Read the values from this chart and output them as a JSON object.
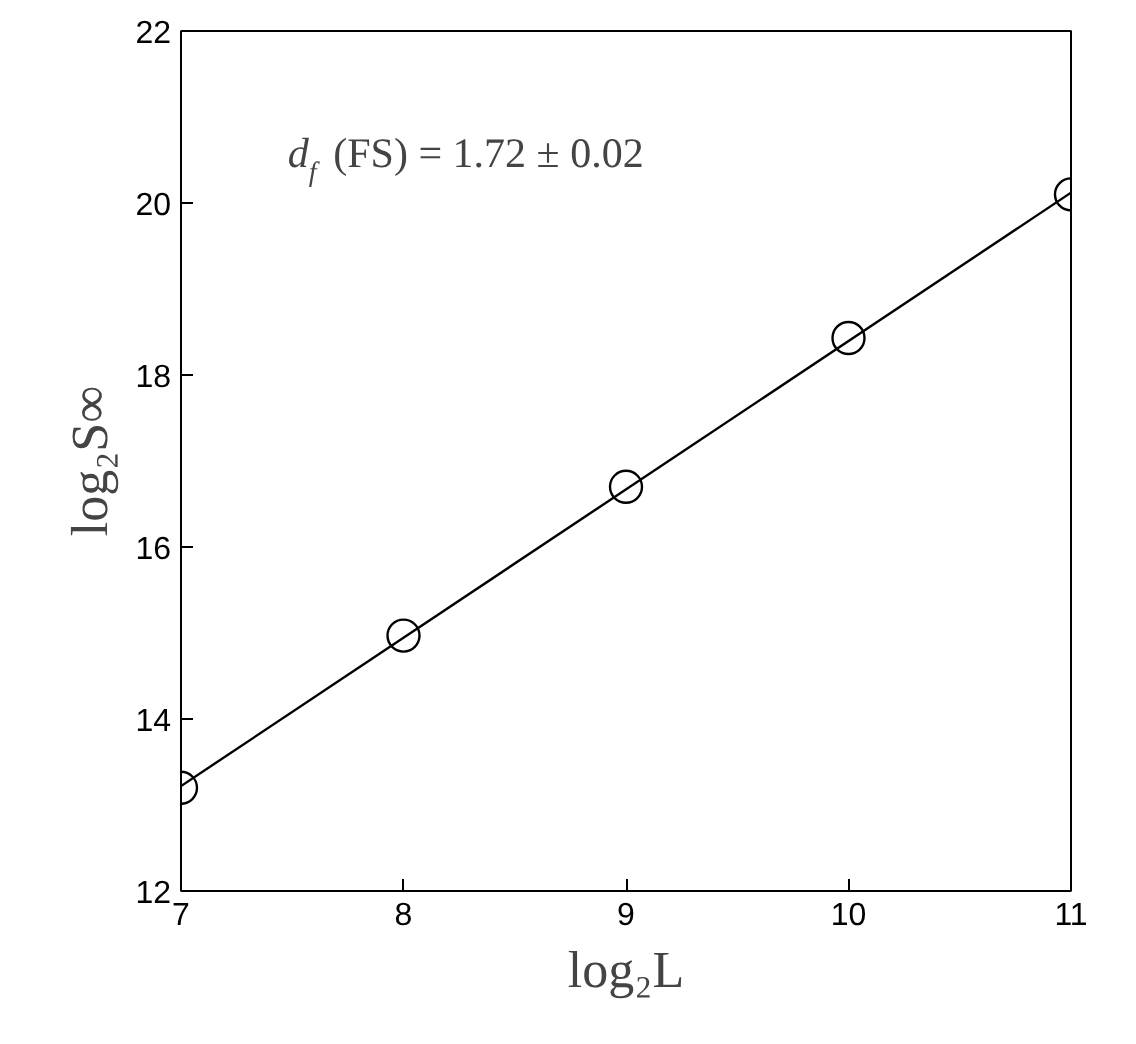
{
  "chart_data": {
    "type": "scatter",
    "xlabel": "log₂L",
    "ylabel": "log₂S∞",
    "annotations": [
      "d$_{f}$ (FS) = 1.72 ± 0.02"
    ],
    "series": [
      {
        "x": [
          7,
          8,
          9,
          10,
          11
        ],
        "values": [
          13.2,
          14.97,
          16.7,
          18.43,
          20.1
        ],
        "color": "#000000",
        "marker": "circle"
      },
      {
        "type": "line",
        "x": [
          7,
          11
        ],
        "values": [
          13.22,
          20.12
        ],
        "color": "#000000",
        "marker": "none"
      }
    ],
    "xlim": [
      7,
      11
    ],
    "ylim": [
      12,
      22
    ],
    "xticks": [
      7,
      8,
      9,
      10,
      11
    ],
    "yticks": [
      12,
      14,
      16,
      18,
      20,
      22
    ],
    "grid": false
  }
}
